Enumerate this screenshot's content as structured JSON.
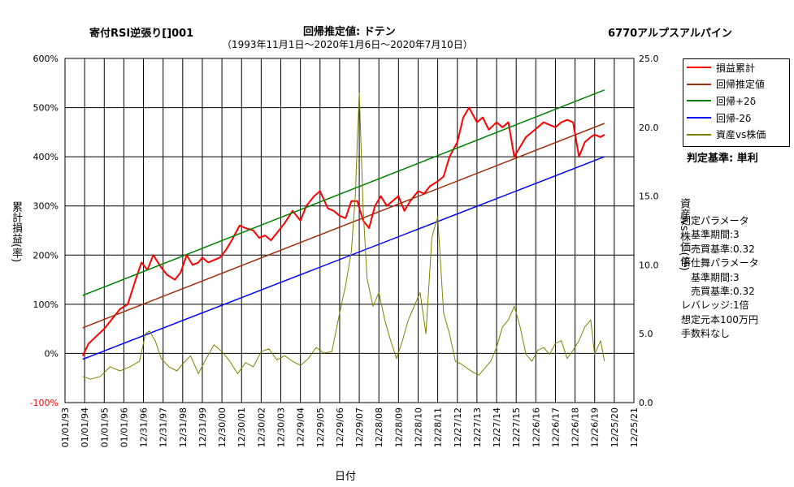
{
  "header": {
    "left_title": "寄付RSI逆張り[]001",
    "center_title": "回帰推定値: ドテン",
    "subtitle": "（1993年11月1日〜2020年1月6日〜2020年7月10日）",
    "right_title": "6770アルプスアルパイン"
  },
  "criteria": "判定基準: 単利",
  "params": [
    "判定パラメータ",
    "　基準期間:3",
    "　売買基準:0.32",
    "手仕舞パラメータ",
    "　基準期間:3",
    "　売買基準:0.32",
    "レバレッジ:1倍",
    "想定元本100万円",
    "手数料なし"
  ],
  "colors": {
    "pnl": "#ff0000",
    "regression": "#a0300a",
    "plus2": "#008000",
    "minus2": "#0000ff",
    "asset_ratio": "#808000",
    "grid": "#000000",
    "negative_tick": "#ff0000"
  },
  "chart_data": {
    "type": "line",
    "title": "回帰推定値: ドテン",
    "xlabel": "日付",
    "ylabel_left": "累計損益(率)",
    "ylabel_right": "資産vs株価(倍)",
    "x_ticks": [
      "01/01/93",
      "01/01/94",
      "01/01/95",
      "01/01/96",
      "12/31/96",
      "12/31/97",
      "12/31/98",
      "12/31/99",
      "12/30/00",
      "12/30/01",
      "12/30/02",
      "12/30/03",
      "12/29/04",
      "12/29/05",
      "12/29/06",
      "12/29/07",
      "12/28/08",
      "12/28/09",
      "12/28/10",
      "12/28/11",
      "12/27/12",
      "12/27/13",
      "12/27/14",
      "12/27/15",
      "12/26/16",
      "12/26/17",
      "12/26/18",
      "12/26/19",
      "12/25/20",
      "12/25/21"
    ],
    "x_range": [
      1993.0,
      2022.0
    ],
    "y_left_ticks": [
      "600%",
      "500%",
      "400%",
      "300%",
      "200%",
      "100%",
      "0%",
      "-100%"
    ],
    "y_left_range": [
      -100,
      600
    ],
    "y_right_ticks": [
      "25.0",
      "20.0",
      "15.0",
      "10.0",
      "5.0",
      "0.0"
    ],
    "y_right_range": [
      0,
      25
    ],
    "legend": [
      "損益累計",
      "回帰推定値",
      "回帰+2δ",
      "回帰-2δ",
      "資産vs株価"
    ],
    "legend_position": "top-right",
    "grid": true,
    "series": [
      {
        "name": "損益累計",
        "axis": "left",
        "color": "#ff0000",
        "x": [
          1993.9,
          1994.2,
          1994.6,
          1995.0,
          1995.4,
          1995.8,
          1996.2,
          1996.6,
          1996.9,
          1997.2,
          1997.5,
          1997.9,
          1998.2,
          1998.6,
          1998.9,
          1999.2,
          1999.5,
          1999.8,
          2000.0,
          2000.3,
          2000.6,
          2000.9,
          2001.2,
          2001.5,
          2001.9,
          2002.2,
          2002.6,
          2002.9,
          2003.2,
          2003.5,
          2003.9,
          2004.2,
          2004.6,
          2005.0,
          2005.3,
          2005.7,
          2006.0,
          2006.4,
          2006.7,
          2007.0,
          2007.3,
          2007.6,
          2007.9,
          2008.2,
          2008.5,
          2008.8,
          2009.1,
          2009.4,
          2009.7,
          2010.0,
          2010.3,
          2010.6,
          2011.0,
          2011.3,
          2011.6,
          2012.0,
          2012.3,
          2012.6,
          2013.0,
          2013.3,
          2013.6,
          2014.0,
          2014.3,
          2014.6,
          2015.0,
          2015.3,
          2015.6,
          2015.9,
          2016.2,
          2016.5,
          2016.8,
          2017.1,
          2017.4,
          2017.7,
          2018.0,
          2018.3,
          2018.6,
          2018.9,
          2019.2,
          2019.5,
          2019.8,
          2020.0,
          2020.3,
          2020.5
        ],
        "values": [
          -5,
          20,
          35,
          50,
          70,
          90,
          100,
          150,
          185,
          170,
          200,
          175,
          160,
          150,
          165,
          200,
          180,
          185,
          195,
          185,
          190,
          195,
          210,
          230,
          260,
          255,
          250,
          235,
          240,
          230,
          250,
          265,
          290,
          270,
          300,
          320,
          330,
          295,
          290,
          280,
          275,
          310,
          310,
          270,
          255,
          300,
          320,
          300,
          310,
          320,
          290,
          310,
          330,
          325,
          340,
          350,
          360,
          400,
          430,
          480,
          500,
          470,
          480,
          455,
          470,
          460,
          470,
          400,
          420,
          440,
          450,
          460,
          470,
          465,
          460,
          470,
          475,
          470,
          400,
          430,
          440,
          445,
          440,
          445
        ]
      },
      {
        "name": "回帰推定値",
        "axis": "left",
        "color": "#a0300a",
        "x": [
          1993.9,
          2020.5
        ],
        "values": [
          52,
          468
        ]
      },
      {
        "name": "回帰+2δ",
        "axis": "left",
        "color": "#008000",
        "x": [
          1993.9,
          2020.5
        ],
        "values": [
          118,
          536
        ]
      },
      {
        "name": "回帰-2δ",
        "axis": "left",
        "color": "#0000ff",
        "x": [
          1993.9,
          2020.5
        ],
        "values": [
          -12,
          400
        ]
      },
      {
        "name": "資産vs株価",
        "axis": "right",
        "color": "#808000",
        "x": [
          1993.9,
          1994.3,
          1994.8,
          1995.3,
          1995.8,
          1996.3,
          1996.8,
          1997.1,
          1997.3,
          1997.6,
          1997.9,
          1998.3,
          1998.7,
          1999.0,
          1999.4,
          1999.8,
          2000.2,
          2000.6,
          2001.0,
          2001.4,
          2001.8,
          2002.2,
          2002.6,
          2003.0,
          2003.4,
          2003.8,
          2004.2,
          2004.6,
          2005.0,
          2005.4,
          2005.8,
          2006.2,
          2006.6,
          2007.0,
          2007.3,
          2007.6,
          2007.8,
          2007.9,
          2008.0,
          2008.2,
          2008.4,
          2008.7,
          2009.0,
          2009.3,
          2009.6,
          2009.9,
          2010.2,
          2010.5,
          2010.8,
          2011.1,
          2011.4,
          2011.7,
          2012.0,
          2012.3,
          2012.6,
          2012.9,
          2013.2,
          2013.5,
          2013.8,
          2014.1,
          2014.4,
          2014.7,
          2015.0,
          2015.3,
          2015.6,
          2015.9,
          2016.2,
          2016.5,
          2016.8,
          2017.1,
          2017.4,
          2017.7,
          2018.0,
          2018.3,
          2018.6,
          2018.9,
          2019.2,
          2019.5,
          2019.8,
          2020.0,
          2020.3,
          2020.5
        ],
        "values": [
          1.9,
          1.7,
          1.9,
          2.6,
          2.3,
          2.6,
          3.0,
          5.0,
          5.2,
          4.5,
          3.2,
          2.6,
          2.3,
          2.8,
          3.4,
          2.1,
          3.2,
          4.2,
          3.7,
          3.0,
          2.1,
          2.9,
          2.6,
          3.7,
          3.9,
          3.1,
          3.4,
          3.0,
          2.7,
          3.2,
          4.0,
          3.6,
          3.7,
          6.5,
          8.5,
          11.0,
          15.0,
          19.0,
          22.5,
          14.0,
          9.0,
          7.0,
          8.0,
          6.0,
          4.5,
          3.2,
          4.5,
          6.0,
          7.0,
          8.0,
          5.0,
          12.0,
          13.5,
          6.5,
          5.0,
          3.0,
          2.8,
          2.5,
          2.2,
          2.0,
          2.5,
          3.0,
          4.0,
          5.5,
          6.0,
          7.0,
          5.5,
          3.5,
          3.0,
          3.8,
          4.0,
          3.5,
          4.3,
          4.5,
          3.2,
          3.8,
          4.5,
          5.5,
          6.0,
          3.5,
          4.5,
          3.0
        ]
      }
    ]
  }
}
